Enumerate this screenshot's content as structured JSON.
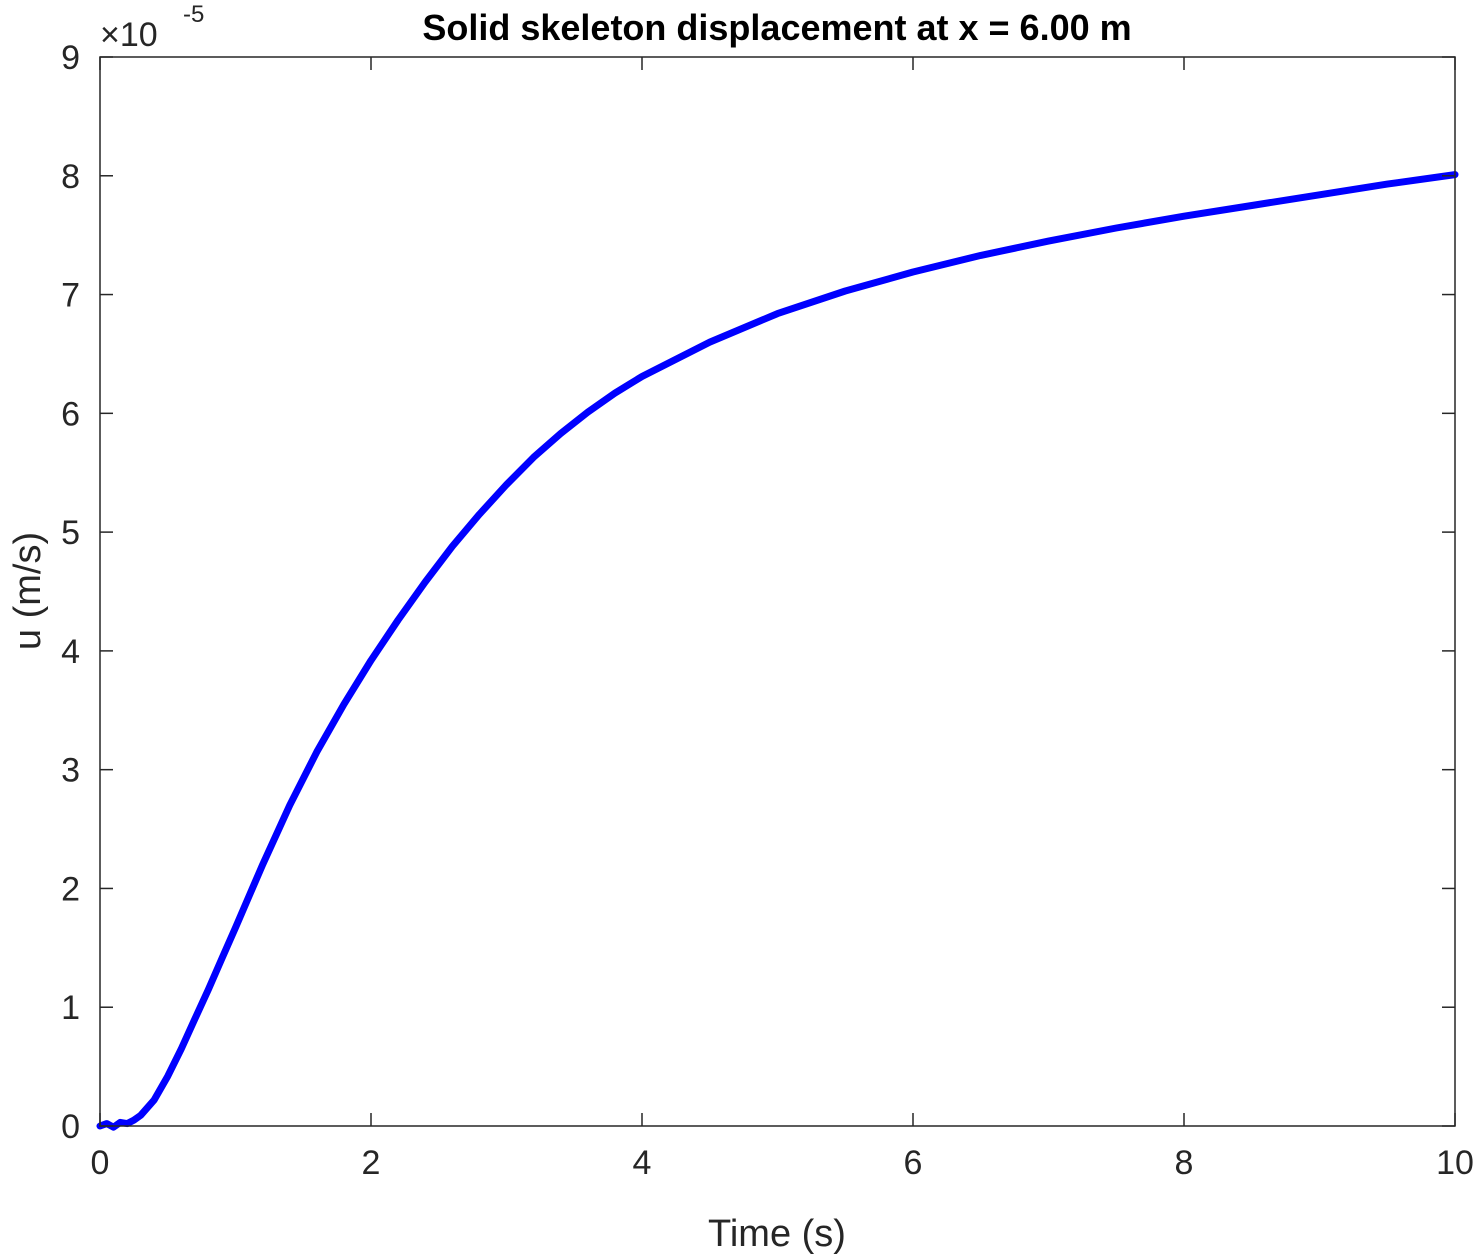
{
  "chart_data": {
    "type": "line",
    "title": "Solid skeleton displacement at x = 6.00 m",
    "xlabel": "Time (s)",
    "ylabel": "u (m/s)",
    "y_multiplier": {
      "base": "×10",
      "exponent": "-5"
    },
    "xlim": [
      0,
      10
    ],
    "ylim": [
      0,
      9
    ],
    "x_ticks": [
      0,
      2,
      4,
      6,
      8,
      10
    ],
    "y_ticks": [
      0,
      1,
      2,
      3,
      4,
      5,
      6,
      7,
      8,
      9
    ],
    "x_tick_labels": [
      "0",
      "2",
      "4",
      "6",
      "8",
      "10"
    ],
    "y_tick_labels": [
      "0",
      "1",
      "2",
      "3",
      "4",
      "5",
      "6",
      "7",
      "8",
      "9"
    ],
    "grid": false,
    "series": [
      {
        "color": "#0000ff",
        "x": [
          0,
          0.05,
          0.1,
          0.15,
          0.2,
          0.25,
          0.3,
          0.4,
          0.5,
          0.6,
          0.7,
          0.8,
          0.9,
          1.0,
          1.2,
          1.4,
          1.6,
          1.8,
          2.0,
          2.2,
          2.4,
          2.6,
          2.8,
          3.0,
          3.2,
          3.4,
          3.6,
          3.8,
          4.0,
          4.5,
          5.0,
          5.5,
          6.0,
          6.5,
          7.0,
          7.5,
          8.0,
          8.5,
          9.0,
          9.5,
          10.0
        ],
        "y": [
          0,
          0.02,
          -0.01,
          0.03,
          0.02,
          0.05,
          0.09,
          0.22,
          0.42,
          0.65,
          0.9,
          1.15,
          1.41,
          1.67,
          2.2,
          2.7,
          3.15,
          3.55,
          3.92,
          4.26,
          4.58,
          4.88,
          5.15,
          5.4,
          5.63,
          5.83,
          6.01,
          6.17,
          6.31,
          6.6,
          6.84,
          7.03,
          7.19,
          7.33,
          7.45,
          7.56,
          7.66,
          7.75,
          7.84,
          7.93,
          8.01
        ]
      }
    ]
  }
}
